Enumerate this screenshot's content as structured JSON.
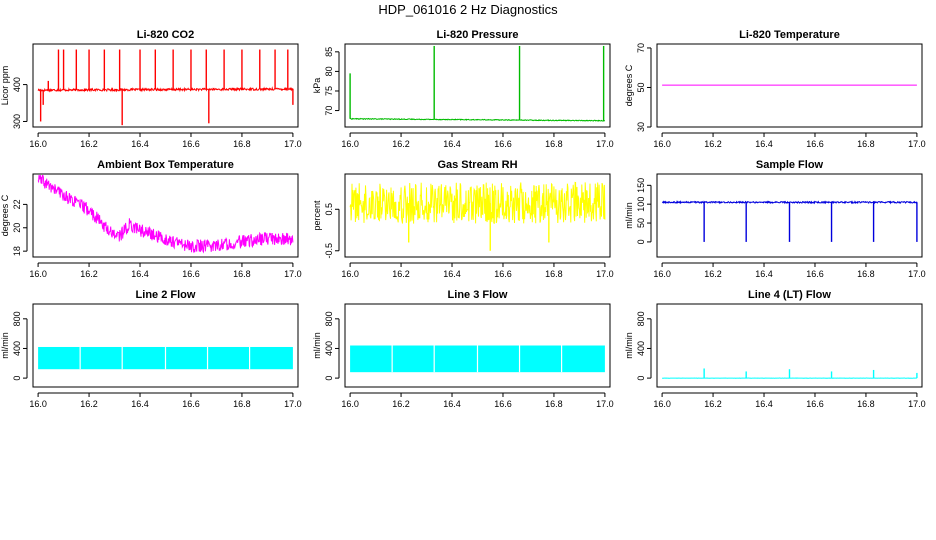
{
  "figure": {
    "title": "HDP_061016  2 Hz Diagnostics"
  },
  "chart_data": [
    {
      "id": "co2",
      "type": "line",
      "title": "Li-820 CO2",
      "ylabel": "Licor ppm",
      "xlabel": "",
      "color": "#ff0000",
      "xlim": [
        15.98,
        17.02
      ],
      "ylim": [
        285,
        510
      ],
      "xticks": [
        "16.0",
        "16.2",
        "16.4",
        "16.6",
        "16.8",
        "17.0"
      ],
      "yticks": [
        {
          "v": 300,
          "label": "300"
        },
        {
          "v": 400,
          "label": "400"
        }
      ],
      "series": [
        {
          "base": [
            [
              16.0,
              385
            ],
            [
              17.0,
              388
            ]
          ],
          "noise": 3,
          "spikes": [
            [
              16.01,
              300
            ],
            [
              16.02,
              345
            ],
            [
              16.04,
              410
            ],
            [
              16.08,
              495
            ],
            [
              16.1,
              495
            ],
            [
              16.15,
              495
            ],
            [
              16.2,
              495
            ],
            [
              16.26,
              495
            ],
            [
              16.32,
              495
            ],
            [
              16.33,
              290
            ],
            [
              16.4,
              495
            ],
            [
              16.46,
              495
            ],
            [
              16.53,
              495
            ],
            [
              16.6,
              495
            ],
            [
              16.66,
              495
            ],
            [
              16.67,
              295
            ],
            [
              16.73,
              495
            ],
            [
              16.8,
              495
            ],
            [
              16.87,
              495
            ],
            [
              16.93,
              495
            ],
            [
              16.98,
              495
            ],
            [
              17.0,
              345
            ]
          ]
        }
      ]
    },
    {
      "id": "pressure",
      "type": "line",
      "title": "Li-820 Pressure",
      "ylabel": "kPa",
      "xlabel": "",
      "color": "#00bb00",
      "xlim": [
        15.98,
        17.02
      ],
      "ylim": [
        65.8,
        87
      ],
      "xticks": [
        "16.0",
        "16.2",
        "16.4",
        "16.6",
        "16.8",
        "17.0"
      ],
      "yticks": [
        {
          "v": 70,
          "label": "70"
        },
        {
          "v": 75,
          "label": "75"
        },
        {
          "v": 80,
          "label": "80"
        },
        {
          "v": 85,
          "label": "85"
        }
      ],
      "series": [
        {
          "base": [
            [
              16.0,
              67.9
            ],
            [
              17.0,
              67.4
            ]
          ],
          "noise": 0.1,
          "spikes": [
            [
              16.0,
              79.5
            ],
            [
              16.33,
              86.5
            ],
            [
              16.665,
              86.5
            ],
            [
              16.995,
              86.5
            ]
          ]
        }
      ]
    },
    {
      "id": "licor_temp",
      "type": "line",
      "title": "Li-820 Temperature",
      "ylabel": "degrees C",
      "xlabel": "",
      "color": "#ff00ff",
      "xlim": [
        15.98,
        17.02
      ],
      "ylim": [
        30,
        72
      ],
      "xticks": [
        "16.0",
        "16.2",
        "16.4",
        "16.6",
        "16.8",
        "17.0"
      ],
      "yticks": [
        {
          "v": 30,
          "label": "30"
        },
        {
          "v": 50,
          "label": "50"
        },
        {
          "v": 70,
          "label": "70"
        }
      ],
      "series": [
        {
          "base": [
            [
              16.0,
              51.2
            ],
            [
              17.0,
              51.2
            ]
          ],
          "noise": 0,
          "spikes": []
        }
      ]
    },
    {
      "id": "box_temp",
      "type": "line",
      "title": "Ambient Box Temperature",
      "ylabel": "degrees C",
      "xlabel": "",
      "color": "#ff00ff",
      "xlim": [
        15.98,
        17.02
      ],
      "ylim": [
        17.5,
        24.6
      ],
      "xticks": [
        "16.0",
        "16.2",
        "16.4",
        "16.6",
        "16.8",
        "17.0"
      ],
      "yticks": [
        {
          "v": 18,
          "label": "18"
        },
        {
          "v": 20,
          "label": "20"
        },
        {
          "v": 22,
          "label": "22"
        }
      ],
      "series": [
        {
          "base": [
            [
              16.0,
              24.2
            ],
            [
              16.1,
              22.8
            ],
            [
              16.2,
              21.5
            ],
            [
              16.28,
              19.7
            ],
            [
              16.32,
              19.3
            ],
            [
              16.36,
              20.3
            ],
            [
              16.4,
              19.8
            ],
            [
              16.5,
              19.0
            ],
            [
              16.6,
              18.4
            ],
            [
              16.7,
              18.5
            ],
            [
              16.8,
              18.8
            ],
            [
              16.9,
              19.1
            ],
            [
              17.0,
              19.0
            ]
          ],
          "noise": 0.55,
          "spikes": []
        }
      ]
    },
    {
      "id": "rh",
      "type": "line",
      "title": "Gas Stream RH",
      "ylabel": "percent",
      "xlabel": "",
      "color": "#ffff00",
      "xlim": [
        15.98,
        17.02
      ],
      "ylim": [
        -0.65,
        1.35
      ],
      "xticks": [
        "16.0",
        "16.2",
        "16.4",
        "16.6",
        "16.8",
        "17.0"
      ],
      "yticks": [
        {
          "v": -0.5,
          "label": "-0.5"
        },
        {
          "v": 0.5,
          "label": "0.5"
        }
      ],
      "series": [
        {
          "base": [
            [
              16.0,
              0.65
            ],
            [
              17.0,
              0.65
            ]
          ],
          "noise": 0.5,
          "spikes": [
            [
              16.55,
              -0.5
            ],
            [
              16.23,
              -0.3
            ],
            [
              16.78,
              -0.3
            ]
          ]
        }
      ]
    },
    {
      "id": "sample_flow",
      "type": "line",
      "title": "Sample Flow",
      "ylabel": "ml/min",
      "xlabel": "",
      "color": "#0000dd",
      "xlim": [
        15.98,
        17.02
      ],
      "ylim": [
        -40,
        180
      ],
      "xticks": [
        "16.0",
        "16.2",
        "16.4",
        "16.6",
        "16.8",
        "17.0"
      ],
      "yticks": [
        {
          "v": 0,
          "label": "0"
        },
        {
          "v": 50,
          "label": "50"
        },
        {
          "v": 100,
          "label": "100"
        },
        {
          "v": 150,
          "label": "150"
        }
      ],
      "series": [
        {
          "base": [
            [
              16.0,
              105
            ],
            [
              17.0,
              105
            ]
          ],
          "noise": 2,
          "spikes": [
            [
              16.165,
              0
            ],
            [
              16.33,
              0
            ],
            [
              16.5,
              0
            ],
            [
              16.665,
              0
            ],
            [
              16.83,
              0
            ],
            [
              17.0,
              0
            ]
          ]
        }
      ]
    },
    {
      "id": "line2_flow",
      "type": "line",
      "title": "Line 2 Flow",
      "ylabel": "ml/min",
      "xlabel": "",
      "color": "#00ffff",
      "xlim": [
        15.98,
        17.02
      ],
      "ylim": [
        -120,
        1000
      ],
      "xticks": [
        "16.0",
        "16.2",
        "16.4",
        "16.6",
        "16.8",
        "17.0"
      ],
      "yticks": [
        {
          "v": 0,
          "label": "0"
        },
        {
          "v": 400,
          "label": "400"
        },
        {
          "v": 800,
          "label": "800"
        }
      ],
      "series": [
        {
          "band": [
            [
              16.0,
              17.0,
              120,
              420
            ]
          ],
          "gaps": [
            16.165,
            16.33,
            16.5,
            16.665,
            16.83
          ]
        }
      ]
    },
    {
      "id": "line3_flow",
      "type": "line",
      "title": "Line 3 Flow",
      "ylabel": "ml/min",
      "xlabel": "",
      "color": "#00ffff",
      "xlim": [
        15.98,
        17.02
      ],
      "ylim": [
        -120,
        1000
      ],
      "xticks": [
        "16.0",
        "16.2",
        "16.4",
        "16.6",
        "16.8",
        "17.0"
      ],
      "yticks": [
        {
          "v": 0,
          "label": "0"
        },
        {
          "v": 400,
          "label": "400"
        },
        {
          "v": 800,
          "label": "800"
        }
      ],
      "series": [
        {
          "band": [
            [
              16.0,
              17.0,
              80,
              440
            ]
          ],
          "gaps": [
            16.165,
            16.33,
            16.5,
            16.665,
            16.83
          ]
        }
      ]
    },
    {
      "id": "line4_flow",
      "type": "line",
      "title": "Line 4 (LT) Flow",
      "ylabel": "ml/min",
      "xlabel": "",
      "color": "#00ffff",
      "xlim": [
        15.98,
        17.02
      ],
      "ylim": [
        -120,
        1000
      ],
      "xticks": [
        "16.0",
        "16.2",
        "16.4",
        "16.6",
        "16.8",
        "17.0"
      ],
      "yticks": [
        {
          "v": 0,
          "label": "0"
        },
        {
          "v": 400,
          "label": "400"
        },
        {
          "v": 800,
          "label": "800"
        }
      ],
      "series": [
        {
          "base": [
            [
              16.0,
              0
            ],
            [
              17.0,
              0
            ]
          ],
          "noise": 1,
          "spikes": [
            [
              16.165,
              130
            ],
            [
              16.33,
              90
            ],
            [
              16.5,
              120
            ],
            [
              16.665,
              90
            ],
            [
              16.83,
              110
            ],
            [
              17.0,
              70
            ]
          ]
        }
      ]
    }
  ]
}
